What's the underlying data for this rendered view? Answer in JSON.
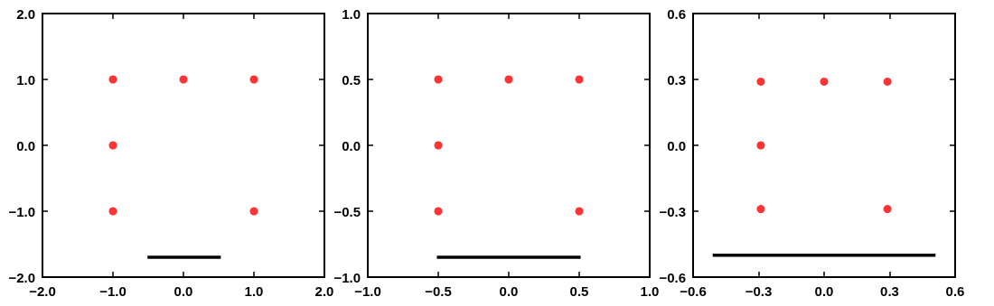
{
  "chart_data": [
    {
      "type": "scatter",
      "xlim": [
        -2,
        2
      ],
      "ylim": [
        -2,
        2
      ],
      "xticks": [
        {
          "value": -2,
          "label": "−2.0"
        },
        {
          "value": -1,
          "label": "−1.0"
        },
        {
          "value": 0,
          "label": "0.0"
        },
        {
          "value": 1,
          "label": "1.0"
        },
        {
          "value": 2,
          "label": "2.0"
        }
      ],
      "yticks": [
        {
          "value": -2,
          "label": "−2.0"
        },
        {
          "value": -1,
          "label": "−1.0"
        },
        {
          "value": 0,
          "label": "0.0"
        },
        {
          "value": 1,
          "label": "1.0"
        },
        {
          "value": 2,
          "label": "2.0"
        }
      ],
      "grid": false,
      "marker": "circle",
      "series": [
        {
          "color": "#ff0000",
          "x": [
            -1,
            0,
            1,
            -1,
            -1,
            1
          ],
          "values": [
            1,
            1,
            1,
            0,
            -1,
            -1
          ]
        },
        {
          "type": "line",
          "color": "#000000",
          "marker": "none",
          "x": [
            -0.51,
            0.53
          ],
          "values": [
            -1.7,
            -1.7
          ]
        }
      ]
    },
    {
      "type": "scatter",
      "xlim": [
        -1,
        1
      ],
      "ylim": [
        -1,
        1
      ],
      "xticks": [
        {
          "value": -1,
          "label": "−1.0"
        },
        {
          "value": -0.5,
          "label": "−0.5"
        },
        {
          "value": 0,
          "label": "0.0"
        },
        {
          "value": 0.5,
          "label": "0.5"
        },
        {
          "value": 1,
          "label": "1.0"
        }
      ],
      "yticks": [
        {
          "value": -1,
          "label": "−1.0"
        },
        {
          "value": -0.5,
          "label": "−0.5"
        },
        {
          "value": 0,
          "label": "0.0"
        },
        {
          "value": 0.5,
          "label": "0.5"
        },
        {
          "value": 1,
          "label": "1.0"
        }
      ],
      "grid": false,
      "marker": "circle",
      "series": [
        {
          "color": "#ff0000",
          "x": [
            -0.5,
            0,
            0.5,
            -0.5,
            -0.5,
            0.5
          ],
          "values": [
            0.5,
            0.5,
            0.5,
            0,
            -0.5,
            -0.5
          ]
        },
        {
          "type": "line",
          "color": "#000000",
          "marker": "none",
          "x": [
            -0.51,
            0.51
          ],
          "values": [
            -0.85,
            -0.85
          ]
        }
      ]
    },
    {
      "type": "scatter",
      "xlim": [
        -0.6,
        0.6
      ],
      "ylim": [
        -0.6,
        0.6
      ],
      "xticks": [
        {
          "value": -0.6,
          "label": "−0.6"
        },
        {
          "value": -0.3,
          "label": "−0.3"
        },
        {
          "value": 0,
          "label": "0.0"
        },
        {
          "value": 0.3,
          "label": "0.3"
        },
        {
          "value": 0.6,
          "label": "0.6"
        }
      ],
      "yticks": [
        {
          "value": -0.6,
          "label": "−0.6"
        },
        {
          "value": -0.3,
          "label": "−0.3"
        },
        {
          "value": 0,
          "label": "0.0"
        },
        {
          "value": 0.3,
          "label": "0.3"
        },
        {
          "value": 0.6,
          "label": "0.6"
        }
      ],
      "grid": false,
      "marker": "circle",
      "series": [
        {
          "color": "#ff0000",
          "x": [
            -0.29,
            0,
            0.29,
            -0.29,
            -0.29,
            0.29
          ],
          "values": [
            0.29,
            0.29,
            0.29,
            0,
            -0.29,
            -0.29
          ]
        },
        {
          "type": "line",
          "color": "#000000",
          "marker": "none",
          "x": [
            -0.51,
            0.51
          ],
          "values": [
            -0.5,
            -0.5
          ]
        }
      ]
    }
  ]
}
